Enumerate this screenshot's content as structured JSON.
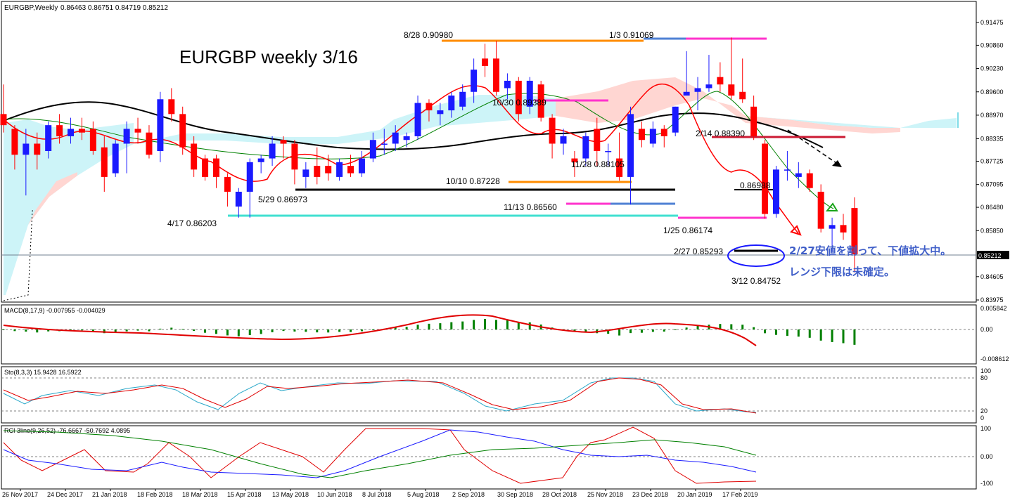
{
  "header": {
    "symbol": "EURGBP,Weekly",
    "ohlc": "0.86463 0.86751 0.84719 0.85212",
    "big_title": "EURGBP weekly 3/16"
  },
  "annotations": {
    "a1": "8/28 0.90980",
    "a2": "1/3 0.91069",
    "a3": "10/30 0.89389",
    "a4": "2/14 0.88390",
    "a5": "11/28 0.88105",
    "a6": "10/10 0.87228",
    "a7": "0.86988",
    "a8": "5/29 0.86973",
    "a9": "11/13 0.86560",
    "a10": "4/17 0.86203",
    "a11": "1/25 0.86174",
    "a12": "2/27 0.85293",
    "a13": "3/12 0.84752",
    "note1": "2/27安値を割って、下値拡大中。",
    "note2": "レンジ下限は未確定。"
  },
  "price_axis": {
    "ticks": [
      "0.91475",
      "0.90860",
      "0.90230",
      "0.89600",
      "0.88970",
      "0.88335",
      "0.87725",
      "0.87095",
      "0.86480",
      "0.85850",
      "0.85212",
      "0.84605",
      "0.83975"
    ],
    "current": "0.85212"
  },
  "date_axis": [
    "26 Nov 2017",
    "24 Dec 2017",
    "21 Jan 2018",
    "18 Feb 2018",
    "18 Mar 2018",
    "15 Apr 2018",
    "13 May 2018",
    "10 Jun 2018",
    "8 Jul 2018",
    "5 Aug 2018",
    "2 Sep 2018",
    "30 Sep 2018",
    "28 Oct 2018",
    "25 Nov 2018",
    "23 Dec 2018",
    "20 Jan 2019",
    "17 Feb 2019"
  ],
  "macd": {
    "label": "MACD(8,17,9) -0.007955 -0.004029",
    "ticks": [
      "0.005842",
      "0.00",
      "-0.008612"
    ]
  },
  "sto": {
    "label": "Sto(8,3,3) 15.9428 16.5922",
    "ticks": [
      "100",
      "80",
      "20",
      "0"
    ]
  },
  "rci": {
    "label": "RCI 3line(9,26,52) -76.6667 -50.7692 4.0895",
    "ticks": [
      "100",
      "0.00",
      "-100"
    ]
  },
  "colors": {
    "bull": "#1a1aff",
    "bear": "#ff0000",
    "cloud_up": "#cdf4f8",
    "cloud_down": "#ffd6d2",
    "macd_bar": "#008000",
    "signal": "#e00000"
  },
  "chart_data": {
    "type": "candlestick",
    "timeframe": "weekly",
    "candles": [
      [
        0.89,
        0.898,
        0.885,
        0.887
      ],
      [
        0.886,
        0.887,
        0.875,
        0.879
      ],
      [
        0.879,
        0.886,
        0.868,
        0.882
      ],
      [
        0.882,
        0.885,
        0.875,
        0.879
      ],
      [
        0.88,
        0.888,
        0.878,
        0.887
      ],
      [
        0.887,
        0.89,
        0.882,
        0.884
      ],
      [
        0.884,
        0.889,
        0.882,
        0.886
      ],
      [
        0.886,
        0.889,
        0.883,
        0.885
      ],
      [
        0.886,
        0.888,
        0.879,
        0.88
      ],
      [
        0.881,
        0.884,
        0.869,
        0.873
      ],
      [
        0.874,
        0.883,
        0.873,
        0.882
      ],
      [
        0.882,
        0.888,
        0.874,
        0.886
      ],
      [
        0.886,
        0.889,
        0.882,
        0.885
      ],
      [
        0.885,
        0.887,
        0.878,
        0.879
      ],
      [
        0.88,
        0.896,
        0.877,
        0.894
      ],
      [
        0.894,
        0.897,
        0.888,
        0.89
      ],
      [
        0.89,
        0.892,
        0.879,
        0.881
      ],
      [
        0.882,
        0.884,
        0.873,
        0.875
      ],
      [
        0.878,
        0.879,
        0.872,
        0.873
      ],
      [
        0.878,
        0.879,
        0.87,
        0.873
      ],
      [
        0.873,
        0.874,
        0.865,
        0.869
      ],
      [
        0.865,
        0.87,
        0.862,
        0.869
      ],
      [
        0.869,
        0.878,
        0.862,
        0.877
      ],
      [
        0.877,
        0.879,
        0.874,
        0.878
      ],
      [
        0.878,
        0.884,
        0.876,
        0.882
      ],
      [
        0.883,
        0.884,
        0.878,
        0.882
      ],
      [
        0.882,
        0.883,
        0.871,
        0.875
      ],
      [
        0.873,
        0.877,
        0.87,
        0.875
      ],
      [
        0.876,
        0.881,
        0.871,
        0.873
      ],
      [
        0.876,
        0.879,
        0.872,
        0.874
      ],
      [
        0.873,
        0.878,
        0.872,
        0.877
      ],
      [
        0.876,
        0.879,
        0.873,
        0.874
      ],
      [
        0.874,
        0.88,
        0.873,
        0.878
      ],
      [
        0.878,
        0.885,
        0.877,
        0.883
      ],
      [
        0.882,
        0.886,
        0.879,
        0.882
      ],
      [
        0.882,
        0.887,
        0.88,
        0.885
      ],
      [
        0.883,
        0.885,
        0.881,
        0.884
      ],
      [
        0.884,
        0.895,
        0.883,
        0.893
      ],
      [
        0.893,
        0.894,
        0.888,
        0.891
      ],
      [
        0.89,
        0.893,
        0.887,
        0.891
      ],
      [
        0.891,
        0.896,
        0.889,
        0.895
      ],
      [
        0.892,
        0.898,
        0.891,
        0.896
      ],
      [
        0.896,
        0.905,
        0.893,
        0.902
      ],
      [
        0.905,
        0.909,
        0.9,
        0.903
      ],
      [
        0.905,
        0.9098,
        0.895,
        0.896
      ],
      [
        0.897,
        0.901,
        0.894,
        0.899
      ],
      [
        0.899,
        0.9,
        0.888,
        0.89
      ],
      [
        0.892,
        0.9,
        0.89,
        0.899
      ],
      [
        0.898,
        0.899,
        0.888,
        0.889
      ],
      [
        0.889,
        0.89,
        0.878,
        0.882
      ],
      [
        0.882,
        0.886,
        0.879,
        0.884
      ],
      [
        0.878,
        0.88,
        0.873,
        0.877
      ],
      [
        0.878,
        0.885,
        0.876,
        0.884
      ],
      [
        0.886,
        0.889,
        0.876,
        0.88
      ],
      [
        0.88,
        0.882,
        0.876,
        0.88
      ],
      [
        0.878,
        0.885,
        0.872,
        0.873
      ],
      [
        0.873,
        0.892,
        0.8656,
        0.89
      ],
      [
        0.886,
        0.888,
        0.881,
        0.883
      ],
      [
        0.882,
        0.888,
        0.881,
        0.886
      ],
      [
        0.886,
        0.887,
        0.881,
        0.884
      ],
      [
        0.885,
        0.892,
        0.884,
        0.892
      ],
      [
        0.895,
        0.907,
        0.895,
        0.896
      ],
      [
        0.896,
        0.9,
        0.891,
        0.897
      ],
      [
        0.897,
        0.906,
        0.896,
        0.898
      ],
      [
        0.9,
        0.904,
        0.896,
        0.898
      ],
      [
        0.898,
        0.9107,
        0.894,
        0.895
      ],
      [
        0.896,
        0.905,
        0.893,
        0.894
      ],
      [
        0.892,
        0.895,
        0.883,
        0.884
      ],
      [
        0.882,
        0.883,
        0.8617,
        0.863
      ],
      [
        0.863,
        0.876,
        0.862,
        0.875
      ],
      [
        0.875,
        0.88,
        0.872,
        0.875
      ],
      [
        0.873,
        0.877,
        0.87,
        0.874
      ],
      [
        0.874,
        0.875,
        0.869,
        0.87
      ],
      [
        0.869,
        0.871,
        0.858,
        0.859
      ],
      [
        0.859,
        0.862,
        0.8529,
        0.86
      ],
      [
        0.86,
        0.863,
        0.856,
        0.858
      ],
      [
        0.8646,
        0.8675,
        0.8472,
        0.8521
      ]
    ]
  }
}
